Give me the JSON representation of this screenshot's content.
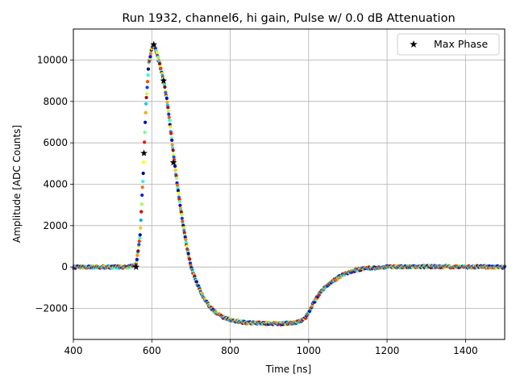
{
  "chart_data": {
    "type": "scatter",
    "title": "Run 1932, channel6, hi gain, Pulse w/ 0.0 dB Attenuation",
    "xlabel": "Time [ns]",
    "ylabel": "Amplitude [ADC Counts]",
    "xlim": [
      400,
      1500
    ],
    "ylim": [
      -3500,
      11500
    ],
    "x_ticks": [
      400,
      600,
      800,
      1000,
      1200,
      1400
    ],
    "y_ticks": [
      -2000,
      0,
      2000,
      4000,
      6000,
      8000,
      10000
    ],
    "x_tick_labels": [
      "400",
      "600",
      "800",
      "1000",
      "1200",
      "1400"
    ],
    "y_tick_labels": [
      "−2000",
      "0",
      "2000",
      "4000",
      "6000",
      "8000",
      "10000"
    ],
    "grid": true,
    "legend": {
      "position": "top-right",
      "entries": [
        "Max Phase"
      ]
    },
    "colormap": "jet",
    "pulse_shape": {
      "time_ns": [
        400,
        540,
        560,
        570,
        578,
        585,
        592,
        600,
        605,
        612,
        620,
        630,
        640,
        650,
        660,
        670,
        680,
        690,
        700,
        715,
        730,
        745,
        760,
        780,
        800,
        825,
        850,
        875,
        900,
        925,
        950,
        975,
        990,
        1000,
        1010,
        1025,
        1040,
        1060,
        1080,
        1100,
        1120,
        1150,
        1200,
        1300,
        1500
      ],
      "amplitude_adc": [
        0,
        0,
        100,
        1500,
        4500,
        7800,
        9800,
        10600,
        10700,
        10400,
        9800,
        9000,
        7900,
        6300,
        4700,
        3300,
        2000,
        900,
        0,
        -800,
        -1400,
        -1850,
        -2150,
        -2400,
        -2550,
        -2650,
        -2700,
        -2720,
        -2730,
        -2730,
        -2720,
        -2650,
        -2500,
        -2200,
        -1800,
        -1350,
        -1000,
        -700,
        -450,
        -280,
        -150,
        -60,
        0,
        20,
        0
      ]
    },
    "max_phase": {
      "name": "Max Phase",
      "points": [
        {
          "x": 560,
          "y": 0
        },
        {
          "x": 580,
          "y": 5500
        },
        {
          "x": 605,
          "y": 10750
        },
        {
          "x": 630,
          "y": 9000
        },
        {
          "x": 655,
          "y": 5050
        }
      ]
    }
  }
}
